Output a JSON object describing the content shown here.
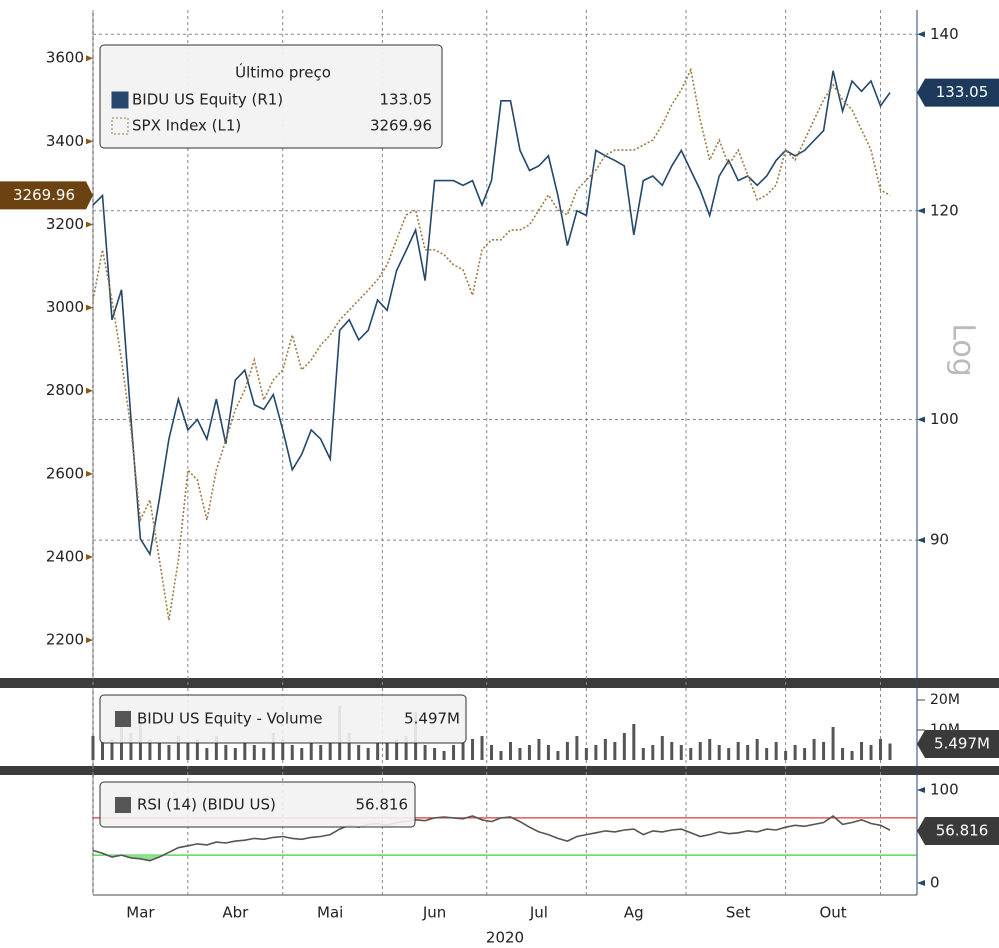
{
  "chart_data": [
    {
      "type": "line",
      "legend_title": "Último preço",
      "y2_label": "Log",
      "y2scale": "log",
      "grid": "y2",
      "ylim": [
        2116,
        3716
      ],
      "yticks": [
        2200,
        2400,
        2600,
        2800,
        3000,
        3200,
        3400,
        3600
      ],
      "y2lim": [
        80,
        143
      ],
      "y2ticks": [
        90,
        100,
        120,
        140
      ],
      "series": [
        {
          "name": "BIDU US Equity (R1)",
          "color": "#24476b",
          "axis": "y2",
          "values": [
            120.6,
            121.6,
            109.1,
            112,
            100,
            90.1,
            88.9,
            93.3,
            98.3,
            101.8,
            99.1,
            100,
            98.3,
            101.8,
            97.9,
            103.5,
            104.4,
            101.3,
            100.9,
            102.2,
            99.1,
            95.7,
            97,
            99.1,
            98.3,
            96.6,
            108.1,
            109.1,
            107.2,
            108.1,
            111,
            110,
            113.9,
            115.9,
            118,
            112.9,
            123.2,
            123.2,
            123.2,
            122.7,
            123.2,
            120.6,
            123.2,
            132.1,
            132.1,
            126.5,
            124.3,
            124.8,
            125.9,
            121.6,
            116.4,
            120,
            119.5,
            126.5,
            125.9,
            125.4,
            124.8,
            117.5,
            123.2,
            123.7,
            122.7,
            124.8,
            126.5,
            124.3,
            122.2,
            119.5,
            123.7,
            125.4,
            123.2,
            123.7,
            122.7,
            123.7,
            125.4,
            126.5,
            125.9,
            126.5,
            127.6,
            128.7,
            135.6,
            130.9,
            134.4,
            133.2,
            134.4,
            131.5,
            133.05
          ]
        },
        {
          "name": "SPX Index (L1)",
          "color": "#a07a45",
          "axis": "y",
          "values": [
            3018,
            3139,
            3018,
            2874,
            2705,
            2489,
            2537,
            2393,
            2248,
            2393,
            2609,
            2585,
            2489,
            2609,
            2681,
            2754,
            2802,
            2874,
            2778,
            2826,
            2850,
            2934,
            2850,
            2874,
            2910,
            2934,
            2970,
            2994,
            3018,
            3042,
            3067,
            3103,
            3163,
            3223,
            3235,
            3139,
            3139,
            3127,
            3103,
            3091,
            3030,
            3139,
            3163,
            3163,
            3187,
            3187,
            3199,
            3235,
            3271,
            3235,
            3223,
            3283,
            3307,
            3331,
            3367,
            3379,
            3379,
            3379,
            3391,
            3403,
            3440,
            3488,
            3524,
            3572,
            3452,
            3355,
            3403,
            3343,
            3379,
            3319,
            3259,
            3271,
            3295,
            3379,
            3355,
            3403,
            3452,
            3500,
            3536,
            3500,
            3476,
            3428,
            3379,
            3283,
            3269.96
          ]
        }
      ]
    },
    {
      "type": "bar",
      "ylim": [
        0,
        23
      ],
      "yticks": [
        {
          "value": 10,
          "label": "10M"
        },
        {
          "value": 20,
          "label": "20M"
        }
      ],
      "series": [
        {
          "name": "BIDU US Equity - Volume",
          "color": "#555555",
          "values": [
            8,
            6,
            7,
            12,
            9,
            15,
            7,
            6,
            5,
            8,
            6,
            7,
            4,
            8,
            5,
            4,
            6,
            5,
            4,
            9,
            7,
            5,
            4,
            6,
            5,
            6,
            18,
            9,
            5,
            4,
            6,
            6,
            7,
            8,
            16,
            5,
            4,
            3,
            5,
            6,
            7,
            8,
            5,
            3,
            6,
            4,
            5,
            7,
            5,
            3,
            6,
            8,
            4,
            5,
            7,
            6,
            9,
            12,
            4,
            5,
            8,
            6,
            5,
            4,
            6,
            7,
            5,
            4,
            6,
            5,
            7,
            4,
            6,
            3,
            5,
            4,
            7,
            6,
            11,
            4,
            3,
            6,
            5,
            7,
            5.497
          ],
          "value_labels": [
            null,
            null,
            null,
            null,
            null,
            null,
            null,
            null,
            null,
            null,
            null,
            null,
            null,
            null,
            null,
            null,
            null,
            null,
            null,
            null,
            null,
            null,
            null,
            null,
            null,
            null,
            null,
            null,
            null,
            null,
            null,
            null,
            null,
            null,
            null,
            null,
            null,
            null,
            null,
            null,
            null,
            null,
            null,
            null,
            null,
            null,
            null,
            null,
            null,
            null,
            null,
            null,
            null,
            null,
            null,
            null,
            null,
            null,
            null,
            null,
            null,
            null,
            null,
            null,
            null,
            null,
            null,
            null,
            null,
            null,
            null,
            null,
            null,
            null,
            null,
            null,
            null,
            null,
            null,
            null,
            null,
            null,
            null,
            null,
            "5.497M"
          ]
        }
      ]
    },
    {
      "type": "line",
      "x_label": "2020",
      "ylim": [
        0,
        100
      ],
      "yticks": [
        0,
        100
      ],
      "categories": [
        null,
        null,
        null,
        null,
        null,
        "Mar",
        null,
        null,
        null,
        null,
        null,
        null,
        null,
        null,
        null,
        "Abr",
        null,
        null,
        null,
        null,
        null,
        null,
        null,
        null,
        null,
        "Mai",
        null,
        null,
        null,
        null,
        null,
        null,
        null,
        null,
        null,
        null,
        "Jun",
        null,
        null,
        null,
        null,
        null,
        null,
        null,
        null,
        null,
        null,
        "Jul",
        null,
        null,
        null,
        null,
        null,
        null,
        null,
        null,
        null,
        "Ag",
        null,
        null,
        null,
        null,
        null,
        null,
        null,
        null,
        null,
        null,
        "Set",
        null,
        null,
        null,
        null,
        null,
        null,
        null,
        null,
        null,
        "Out",
        null,
        null,
        null,
        null,
        null,
        null
      ],
      "reference_lines": [
        {
          "value": 70,
          "color": "#e03a3a"
        },
        {
          "value": 30,
          "color": "#3ad23a"
        }
      ],
      "series": [
        {
          "name": "RSI (14) (BIDU US)",
          "color": "#555555",
          "values": [
            35,
            32,
            28,
            30,
            27,
            26,
            24,
            28,
            33,
            38,
            40,
            42,
            41,
            44,
            43,
            45,
            46,
            48,
            47,
            49,
            50,
            48,
            47,
            49,
            50,
            52,
            58,
            62,
            60,
            63,
            64,
            62,
            65,
            66,
            68,
            67,
            70,
            71,
            70,
            69,
            72,
            68,
            66,
            70,
            71,
            66,
            60,
            55,
            52,
            48,
            45,
            50,
            52,
            54,
            56,
            55,
            57,
            58,
            52,
            56,
            55,
            57,
            58,
            54,
            50,
            52,
            55,
            53,
            54,
            56,
            55,
            58,
            57,
            60,
            62,
            61,
            63,
            65,
            72,
            63,
            65,
            68,
            64,
            62,
            56.816
          ]
        }
      ]
    }
  ]
}
